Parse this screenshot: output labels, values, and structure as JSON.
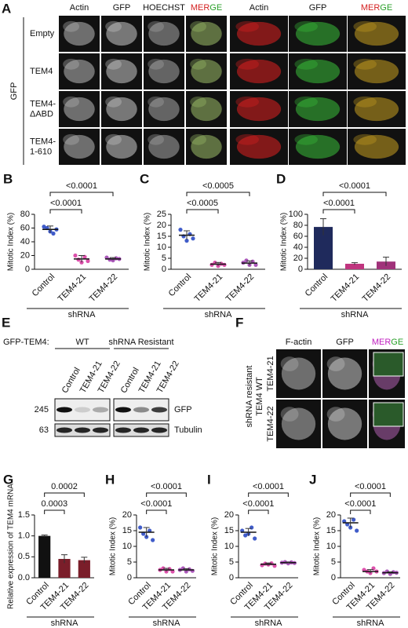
{
  "panel_a": {
    "letter": "A",
    "side_label": "GFP",
    "columns": [
      "Actin",
      "GFP",
      "HOECHST"
    ],
    "merge_parts": [
      "MER",
      "GE"
    ],
    "zoom_columns": [
      "Actin",
      "GFP"
    ],
    "zoom_merge_parts": [
      "MER",
      "GE"
    ],
    "rows": [
      [
        "Empty"
      ],
      [
        "TEM4"
      ],
      [
        "TEM4-",
        "ΔABD"
      ],
      [
        "TEM4-",
        "1-610"
      ]
    ]
  },
  "panel_e": {
    "letter": "E",
    "construct": "GFP-TEM4:",
    "groups": [
      "WT",
      "shRNA Resistant"
    ],
    "lanes": [
      "Control",
      "TEM4-21",
      "TEM4-22",
      "Control",
      "TEM4-21",
      "TEM4-22"
    ],
    "blots": [
      "GFP",
      "Tubulin"
    ],
    "markers": [
      "245",
      "63"
    ]
  },
  "panel_f": {
    "letter": "F",
    "side_label": [
      "shRNA resistant",
      "TEM4 WT"
    ],
    "columns": [
      "F-actin",
      "GFP"
    ],
    "merge_parts": [
      "MER",
      "GE"
    ],
    "rows": [
      "TEM4-21",
      "TEM4-22"
    ]
  },
  "chart_data": [
    {
      "type": "dotplot",
      "panel": "B",
      "ylabel": "Mitotic Index (%)",
      "xlabel": "shRNA",
      "categories": [
        "Control",
        "TEM4-21",
        "TEM4-22"
      ],
      "values": [
        58,
        15,
        15
      ],
      "errors": [
        5,
        5,
        2
      ],
      "points": [
        [
          62,
          60,
          55,
          52,
          58
        ],
        [
          20,
          14,
          10,
          18,
          12
        ],
        [
          17,
          14,
          13,
          16,
          15
        ]
      ],
      "colors": [
        "#1f3fbf",
        "#d6339c",
        "#9c3cae"
      ],
      "significance": [
        "<0.0001",
        "<0.0001"
      ],
      "ylim": [
        0,
        80
      ],
      "yticks": [
        0,
        20,
        40,
        60,
        80
      ]
    },
    {
      "type": "dotplot",
      "panel": "C",
      "ylabel": "Mitotic Index (%)",
      "xlabel": "shRNA",
      "categories": [
        "Control",
        "TEM4-21",
        "TEM4-22"
      ],
      "values": [
        15.5,
        2.3,
        2.8
      ],
      "errors": [
        2,
        0.8,
        1
      ],
      "points": [
        [
          18,
          15,
          13,
          16,
          14
        ],
        [
          2,
          3,
          1.5,
          2.5,
          2
        ],
        [
          3,
          4,
          2,
          3.5,
          2
        ]
      ],
      "colors": [
        "#1f3fbf",
        "#d6339c",
        "#9c3cae"
      ],
      "significance": [
        "<0.0005",
        "<0.0005"
      ],
      "ylim": [
        0,
        25
      ],
      "yticks": [
        0,
        5,
        10,
        15,
        20,
        25
      ]
    },
    {
      "type": "bar",
      "panel": "D",
      "ylabel": "Mitotic Index (%)",
      "xlabel": "shRNA",
      "categories": [
        "Control",
        "TEM4-21",
        "TEM4-22"
      ],
      "values": [
        77,
        10,
        14
      ],
      "errors": [
        15,
        2,
        8
      ],
      "colors": [
        "#1f2a5c",
        "#c0357f",
        "#a0327a"
      ],
      "significance": [
        "<0.0001",
        "<0.0001"
      ],
      "ylim": [
        0,
        100
      ],
      "yticks": [
        0,
        20,
        40,
        60,
        80,
        100
      ]
    },
    {
      "type": "bar",
      "panel": "G",
      "ylabel": "Relative expression of TEM4 mRNA",
      "xlabel": "shRNA",
      "categories": [
        "Control",
        "TEM4-21",
        "TEM4-22"
      ],
      "values": [
        1.0,
        0.45,
        0.42
      ],
      "errors": [
        0.02,
        0.1,
        0.07
      ],
      "colors": [
        "#111111",
        "#7a1e2a",
        "#7a1e2a"
      ],
      "significance": [
        "0.0003",
        "0.0002"
      ],
      "ylim": [
        0,
        1.5
      ],
      "yticks": [
        {
          "value": 0,
          "label": "0.0"
        },
        {
          "value": 0.5,
          "label": "0.5"
        },
        {
          "value": 1,
          "label": "1.0"
        },
        {
          "value": 1.5,
          "label": "1.5"
        }
      ]
    },
    {
      "type": "dotplot",
      "panel": "H",
      "ylabel": "Mitotic Index (%)",
      "xlabel": "shRNA",
      "categories": [
        "Control",
        "TEM4-21",
        "TEM4-22"
      ],
      "values": [
        14.5,
        2.5,
        2.5
      ],
      "errors": [
        1.5,
        0.5,
        0.4
      ],
      "points": [
        [
          16,
          14,
          13,
          15,
          12
        ],
        [
          2.5,
          3,
          2,
          2.8,
          2
        ],
        [
          2.5,
          3,
          2,
          2.7,
          2.2
        ]
      ],
      "colors": [
        "#1f3fbf",
        "#d6339c",
        "#9c3cae"
      ],
      "significance": [
        "<0.0001",
        "<0.0001"
      ],
      "ylim": [
        0,
        20
      ],
      "yticks": [
        0,
        5,
        10,
        15,
        20
      ]
    },
    {
      "type": "dotplot",
      "panel": "I",
      "ylabel": "Mitotic Index (%)",
      "xlabel": "shRNA",
      "categories": [
        "Control",
        "TEM4-21",
        "TEM4-22"
      ],
      "values": [
        14.5,
        4.3,
        4.8
      ],
      "errors": [
        1.2,
        0.4,
        0.2
      ],
      "points": [
        [
          15,
          13.5,
          14,
          16,
          12.5
        ],
        [
          4,
          4.5,
          4.2,
          4.6,
          3.8
        ],
        [
          4.8,
          5,
          4.6,
          4.9,
          4.7
        ]
      ],
      "colors": [
        "#1f3fbf",
        "#d6339c",
        "#9c3cae"
      ],
      "significance": [
        "<0.0001",
        "<0.0001"
      ],
      "ylim": [
        0,
        20
      ],
      "yticks": [
        0,
        5,
        10,
        15,
        20
      ]
    },
    {
      "type": "dotplot",
      "panel": "J",
      "ylabel": "Mitotic Index (%)",
      "xlabel": "shRNA",
      "categories": [
        "Control",
        "TEM4-21",
        "TEM4-22"
      ],
      "values": [
        17.5,
        2,
        1.6
      ],
      "errors": [
        1.5,
        0.6,
        0.3
      ],
      "points": [
        [
          18,
          17,
          16,
          18.5,
          15
        ],
        [
          2.5,
          2,
          1.5,
          3,
          2
        ],
        [
          1.5,
          2,
          1.2,
          1.8,
          1.6
        ]
      ],
      "colors": [
        "#1f3fbf",
        "#d6339c",
        "#9c3cae"
      ],
      "significance": [
        "<0.0001",
        "<0.0001"
      ],
      "ylim": [
        0,
        20
      ],
      "yticks": [
        0,
        5,
        10,
        15,
        20
      ]
    }
  ]
}
